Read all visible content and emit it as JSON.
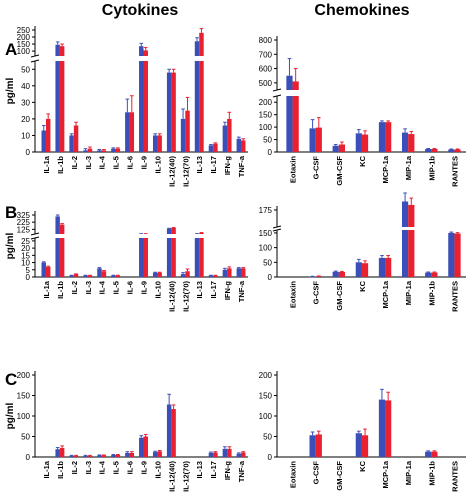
{
  "header": {
    "left": "Cytokines",
    "right": "Chemokines"
  },
  "colors": {
    "blue": "#3b4fb8",
    "red": "#e8202f",
    "axis": "#000000"
  },
  "chart_data": [
    {
      "panel": "A",
      "side": "left",
      "type": "bar",
      "ylabel": "pg/ml",
      "yticks": [
        0,
        10,
        20,
        30,
        40,
        50,
        100,
        150,
        200,
        250
      ],
      "break": [
        55,
        65
      ],
      "categories": [
        "IL-1a",
        "IL-1b",
        "IL-2",
        "IL-3",
        "IL-4",
        "IL-5",
        "IL-6",
        "IL-9",
        "IL-10",
        "IL-12(40)",
        "IL-12(70)",
        "IL-13",
        "IL-17",
        "IFN-g",
        "TNF-a"
      ],
      "series": [
        {
          "values": [
            13,
            145,
            10,
            1,
            1,
            2,
            24,
            135,
            10,
            48,
            20,
            170,
            4,
            16,
            8
          ],
          "errors": [
            3,
            20,
            1,
            1,
            0.5,
            0.5,
            8,
            20,
            1,
            2,
            6,
            25,
            0.5,
            2,
            1
          ]
        },
        {
          "values": [
            20,
            135,
            16,
            2,
            1,
            2,
            24,
            105,
            10,
            48,
            25,
            230,
            5,
            20,
            7
          ],
          "errors": [
            3,
            15,
            2,
            1,
            0.5,
            0.5,
            10,
            20,
            1,
            2,
            8,
            30,
            0.5,
            4,
            1
          ]
        }
      ]
    },
    {
      "panel": "A",
      "side": "right",
      "type": "bar",
      "ylabel": "",
      "yticks": [
        0,
        50,
        100,
        150,
        200,
        500,
        600,
        700,
        800
      ],
      "break": [
        225,
        450
      ],
      "categories": [
        "Eotaxin",
        "G-CSF",
        "GM-CSF",
        "KC",
        "MCP-1a",
        "MIP-1a",
        "MIP-1b",
        "RANTES"
      ],
      "series": [
        {
          "values": [
            550,
            95,
            25,
            75,
            120,
            78,
            12,
            10
          ],
          "errors": [
            120,
            35,
            5,
            15,
            5,
            15,
            2,
            2
          ]
        },
        {
          "values": [
            510,
            98,
            30,
            70,
            120,
            72,
            12,
            10
          ],
          "errors": [
            90,
            40,
            10,
            15,
            5,
            10,
            2,
            2
          ]
        }
      ]
    },
    {
      "panel": "B",
      "side": "left",
      "type": "bar",
      "ylabel": "pg/ml",
      "yticks": [
        0,
        5,
        10,
        15,
        20,
        25,
        125,
        225,
        325
      ],
      "break": [
        27,
        60
      ],
      "categories": [
        "IL-1a",
        "IL-1b",
        "IL-2",
        "IL-3",
        "IL-4",
        "IL-5",
        "IL-6",
        "IL-9",
        "IL-10",
        "IL-12(40)",
        "IL-12(70)",
        "IL-13",
        "IL-17",
        "IFN-g",
        "TNF-a"
      ],
      "series": [
        {
          "values": [
            10,
            305,
            1,
            1,
            6,
            1,
            0,
            60,
            3,
            135,
            2,
            60,
            1,
            5,
            6
          ],
          "errors": [
            0.5,
            20,
            0.2,
            0.2,
            0.5,
            0.2,
            0,
            5,
            0.3,
            5,
            1,
            5,
            0.2,
            1,
            0.5
          ]
        },
        {
          "values": [
            7,
            190,
            2,
            1,
            4,
            1,
            0,
            60,
            3,
            145,
            4,
            75,
            1,
            6,
            6
          ],
          "errors": [
            0.5,
            15,
            0.2,
            0.2,
            0.5,
            0.2,
            0,
            5,
            0.3,
            5,
            1.5,
            5,
            0.2,
            1,
            0.5
          ]
        }
      ]
    },
    {
      "panel": "B",
      "side": "right",
      "type": "bar",
      "ylabel": "",
      "yticks": [
        0,
        50,
        100,
        150,
        175
      ],
      "break": [
        160,
        165
      ],
      "categories": [
        "Eotaxin",
        "G-CSF",
        "GM-CSF",
        "KC",
        "MCP-1a",
        "MIP-1a",
        "MIP-1b",
        "RANTES"
      ],
      "series": [
        {
          "values": [
            0,
            2,
            18,
            50,
            65,
            180,
            15,
            150
          ],
          "errors": [
            0,
            0.5,
            2,
            10,
            8,
            5,
            2,
            3
          ]
        },
        {
          "values": [
            0,
            3,
            17,
            47,
            65,
            178,
            15,
            148
          ],
          "errors": [
            0,
            0.5,
            2,
            8,
            8,
            4,
            2,
            3
          ]
        }
      ]
    },
    {
      "panel": "C",
      "side": "left",
      "type": "bar",
      "ylabel": "pg/ml",
      "yticks": [
        0,
        50,
        100,
        150,
        200
      ],
      "ylim": [
        0,
        200
      ],
      "categories": [
        "IL-1a",
        "IL-1b",
        "IL-2",
        "IL-3",
        "IL-4",
        "IL-5",
        "IL-6",
        "IL-9",
        "IL-10",
        "IL-12(40)",
        "IL-12(70)",
        "IL-13",
        "IL-17",
        "IFN-g",
        "TNF-a"
      ],
      "series": [
        {
          "values": [
            0,
            19,
            3,
            3,
            4,
            5,
            10,
            47,
            12,
            128,
            0,
            0,
            10,
            20,
            8
          ],
          "errors": [
            0,
            4,
            1,
            1,
            1,
            1,
            3,
            5,
            2,
            25,
            0,
            0,
            2,
            5,
            2
          ]
        },
        {
          "values": [
            0,
            22,
            3,
            3,
            4,
            5,
            10,
            50,
            14,
            117,
            0,
            0,
            11,
            20,
            11
          ],
          "errors": [
            0,
            5,
            1,
            1,
            1,
            1,
            3,
            5,
            2,
            10,
            0,
            0,
            2,
            5,
            2
          ]
        }
      ]
    },
    {
      "panel": "C",
      "side": "right",
      "type": "bar",
      "ylabel": "",
      "yticks": [
        0,
        50,
        100,
        150,
        200
      ],
      "ylim": [
        0,
        200
      ],
      "categories": [
        "Eotaxin",
        "G-CSF",
        "GM-CSF",
        "KC",
        "MCP-1a",
        "MIP-1a",
        "MIP-1b",
        "RANTES"
      ],
      "series": [
        {
          "values": [
            0,
            53,
            0,
            58,
            140,
            0,
            13,
            0
          ],
          "errors": [
            0,
            8,
            0,
            5,
            25,
            0,
            2,
            0
          ]
        },
        {
          "values": [
            0,
            55,
            0,
            53,
            138,
            0,
            13,
            0
          ],
          "errors": [
            0,
            8,
            0,
            15,
            20,
            0,
            2,
            0
          ]
        }
      ]
    }
  ]
}
